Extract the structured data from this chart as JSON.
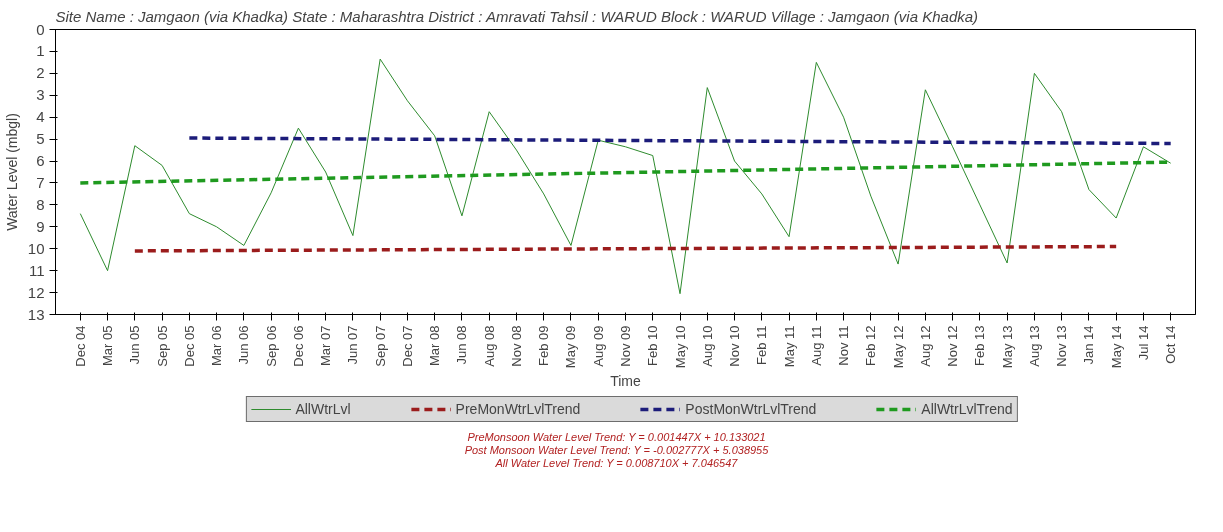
{
  "chart_data": {
    "type": "line",
    "title": "Site Name : Jamgaon (via Khadka)  State : Maharashtra District : Amravati  Tahsil : WARUD  Block : WARUD Village : Jamgaon (via Khadka)",
    "xlabel": "Time",
    "ylabel": "Water Level (mbgl)",
    "categories": [
      "Dec 04",
      "Mar 05",
      "Jun 05",
      "Sep 05",
      "Dec 05",
      "Mar 06",
      "Jun 06",
      "Sep 06",
      "Dec 06",
      "Mar 07",
      "Jun 07",
      "Sep 07",
      "Dec 07",
      "Mar 08",
      "Jun 08",
      "Aug 08",
      "Nov 08",
      "Feb 09",
      "May 09",
      "Aug 09",
      "Nov 09",
      "Feb 10",
      "May 10",
      "Aug 10",
      "Nov 10",
      "Feb 11",
      "May 11",
      "Aug 11",
      "Nov 11",
      "Feb 12",
      "May 12",
      "Aug 12",
      "Nov 12",
      "Feb 13",
      "May 13",
      "Aug 13",
      "Nov 13",
      "Jan 14",
      "May 14",
      "Jul 14",
      "Oct 14"
    ],
    "ylim": [
      13,
      0
    ],
    "yticks": [
      0,
      1,
      2,
      3,
      4,
      5,
      6,
      7,
      8,
      9,
      10,
      11,
      12,
      13
    ],
    "legend": "bottom",
    "series": [
      {
        "name": "AllWtrLvl",
        "color": "#2e8b2e",
        "line_style": "solid",
        "values": [
          8.4,
          11.0,
          5.3,
          6.2,
          8.4,
          9.0,
          9.85,
          7.45,
          4.5,
          6.5,
          9.4,
          1.35,
          3.25,
          4.85,
          8.5,
          3.75,
          5.5,
          7.5,
          9.85,
          5.05,
          5.35,
          5.75,
          12.05,
          2.65,
          6.0,
          7.5,
          9.45,
          1.5,
          4.0,
          7.6,
          10.7,
          2.75,
          5.35,
          8.0,
          10.65,
          2.0,
          3.75,
          7.3,
          8.6,
          5.35,
          6.1
        ]
      },
      {
        "name": "PreMonWtrLvlTrend",
        "color": "#9b1c1c",
        "line_style": "dashed",
        "x": [
          "Jun 05",
          "May 14"
        ],
        "values": [
          10.1,
          9.9
        ]
      },
      {
        "name": "PostMonWtrLvlTrend",
        "color": "#1c1c7a",
        "line_style": "dashed",
        "x": [
          "Dec 05",
          "Oct 14"
        ],
        "values": [
          4.95,
          5.2
        ]
      },
      {
        "name": "AllWtrLvlTrend",
        "color": "#1f9a1f",
        "line_style": "dashed",
        "x": [
          "Dec 04",
          "Oct 14"
        ],
        "values": [
          7.0,
          6.05
        ]
      }
    ],
    "annotations": [
      "PreMonsoon Water Level Trend: Y = 0.001447X + 10.133021",
      "Post Monsoon Water Level Trend: Y = -0.002777X + 5.038955",
      "All Water Level Trend: Y = 0.008710X + 7.046547"
    ]
  }
}
